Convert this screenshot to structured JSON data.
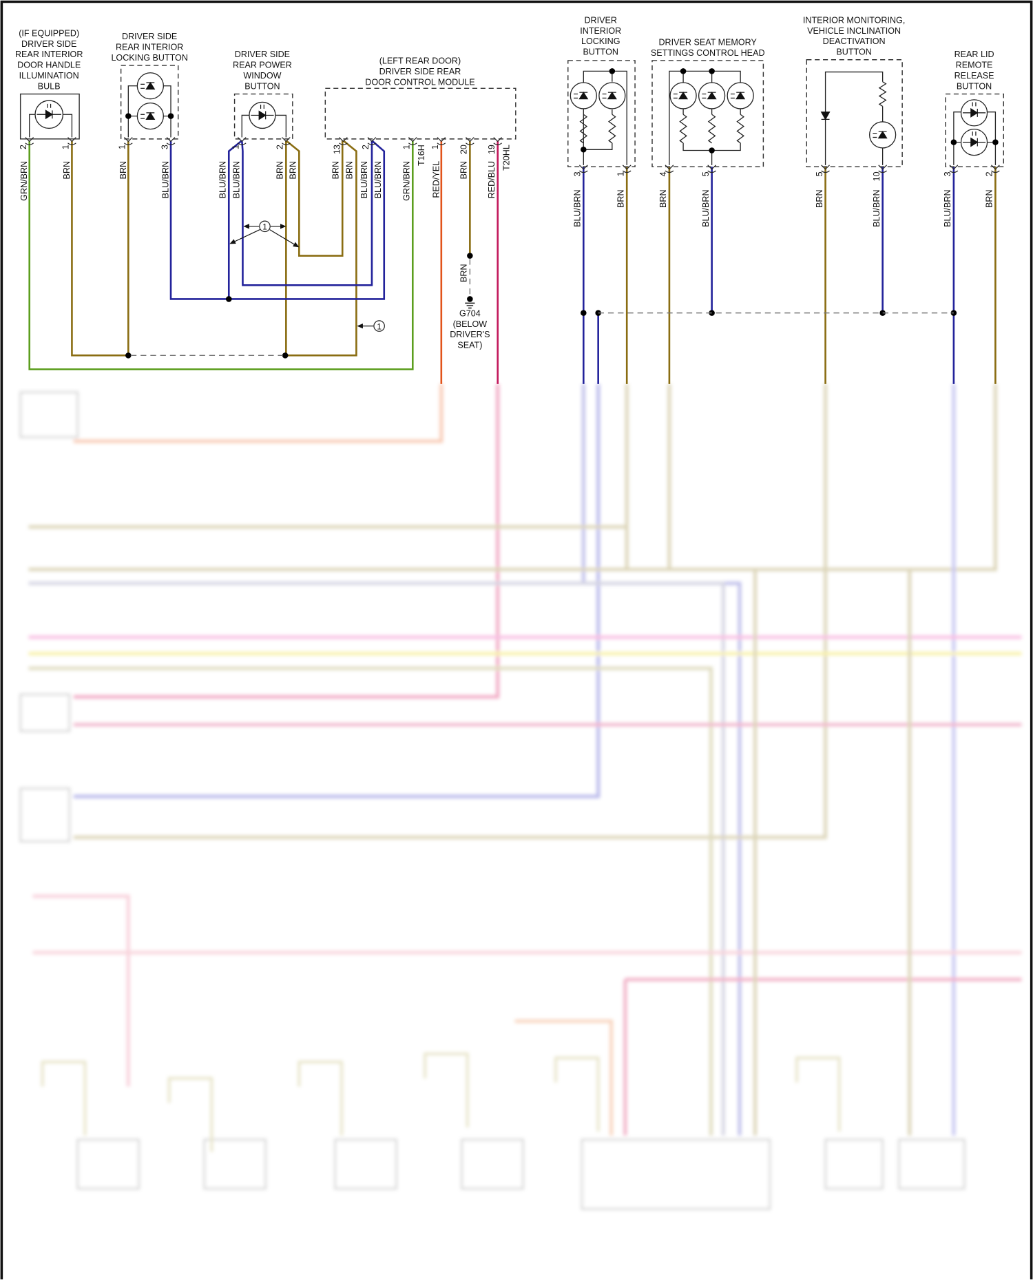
{
  "colors": {
    "BRN": "#8a6d12",
    "BLU": "#23239b",
    "GRN": "#5c9e1e",
    "RED_YEL": "#e2531a",
    "RED_BLU": "#c2185b",
    "splice_dash": "#777777"
  },
  "components": [
    {
      "id": "bulb",
      "title": [
        "(IF EQUIPPED)",
        "DRIVER SIDE",
        "REAR INTERIOR",
        "DOOR HANDLE",
        "ILLUMINATION",
        "BULB"
      ]
    },
    {
      "id": "rear-locking-button",
      "title": [
        "DRIVER SIDE",
        "REAR INTERIOR",
        "LOCKING BUTTON"
      ]
    },
    {
      "id": "rear-window-button",
      "title": [
        "DRIVER SIDE",
        "REAR POWER",
        "WINDOW",
        "BUTTON"
      ]
    },
    {
      "id": "rear-door-module",
      "title": [
        "(LEFT REAR DOOR)",
        "DRIVER SIDE REAR",
        "DOOR CONTROL MODULE"
      ]
    },
    {
      "id": "driver-locking-button",
      "title": [
        "DRIVER",
        "INTERIOR",
        "LOCKING",
        "BUTTON"
      ]
    },
    {
      "id": "seat-memory-head",
      "title": [
        "DRIVER SEAT MEMORY",
        "SETTINGS CONTROL HEAD"
      ]
    },
    {
      "id": "interior-monitoring-button",
      "title": [
        "INTERIOR MONITORING,",
        "VEHICLE INCLINATION",
        "DEACTIVATION",
        "BUTTON"
      ]
    },
    {
      "id": "rear-lid-button",
      "title": [
        "REAR LID",
        "REMOTE",
        "RELEASE",
        "BUTTON"
      ]
    }
  ],
  "pins": [
    {
      "pin": "2",
      "wire": "GRN/BRN"
    },
    {
      "pin": "1",
      "wire": "BRN"
    },
    {
      "pin": "1",
      "wire": "BRN"
    },
    {
      "pin": "3",
      "wire": "BLU/BRN"
    },
    {
      "pin": "1",
      "wires": [
        "BLU/BRN",
        "BLU/BRN"
      ]
    },
    {
      "pin": "2",
      "wires": [
        "BRN",
        "BRN"
      ]
    },
    {
      "pin": "13",
      "wires": [
        "BRN",
        "BRN"
      ]
    },
    {
      "pin": "2",
      "wires": [
        "BLU/BRN",
        "BLU/BRN"
      ]
    },
    {
      "pin": "1",
      "wire": "GRN/BRN",
      "connector": "T16H"
    },
    {
      "pin": "1",
      "wire": "RED/YEL"
    },
    {
      "pin": "20",
      "wire": "BRN"
    },
    {
      "pin": "19",
      "wire": "RED/BLU",
      "connector": "T20HL"
    },
    {
      "pin": "3",
      "wire": "BLU/BRN"
    },
    {
      "pin": "1",
      "wire": "BRN"
    },
    {
      "pin": "4",
      "wire": "BRN"
    },
    {
      "pin": "5",
      "wire": "BLU/BRN"
    },
    {
      "pin": "5",
      "wire": "BRN"
    },
    {
      "pin": "10",
      "wire": "BLU/BRN"
    },
    {
      "pin": "3",
      "wire": "BLU/BRN"
    },
    {
      "pin": "2",
      "wire": "BRN"
    }
  ],
  "ground": {
    "wire": "BRN",
    "label": [
      "G704",
      "(BELOW",
      "DRIVER'S",
      "SEAT)"
    ]
  },
  "callouts": [
    "1",
    "1"
  ]
}
